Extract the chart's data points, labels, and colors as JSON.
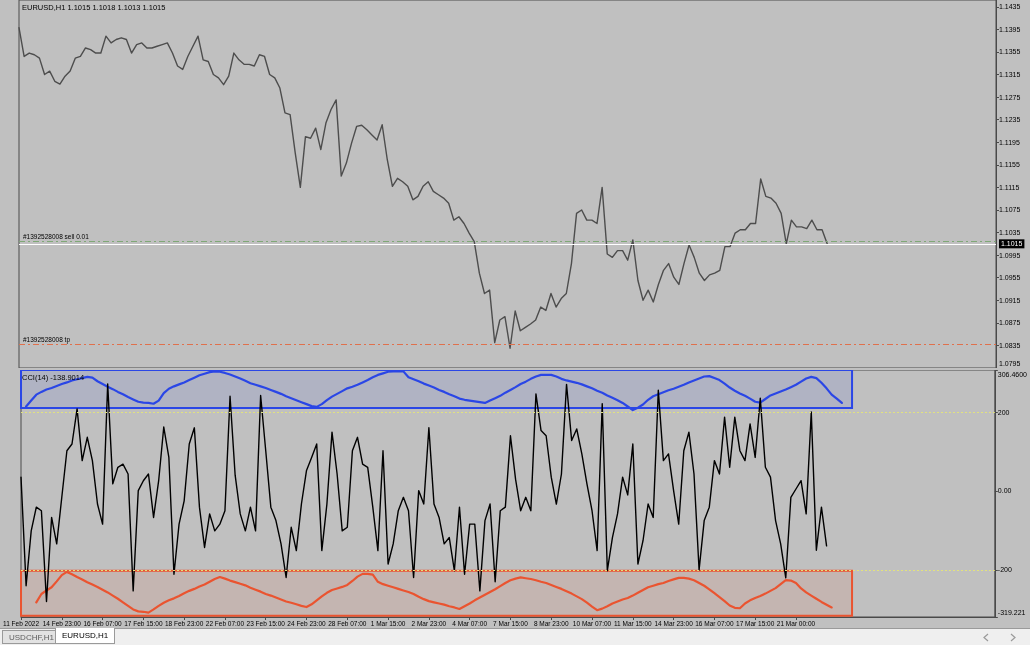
{
  "chart_data": [
    {
      "type": "line",
      "title": "EURUSD,H1 1.1015 1.1018 1.1013 1.1015",
      "categories": [
        null,
        null,
        null,
        null,
        null,
        null,
        null,
        null,
        null,
        null,
        null,
        null,
        null,
        null,
        null,
        null,
        null,
        null,
        null,
        null,
        null,
        null,
        null,
        null,
        null,
        null,
        null,
        null,
        null,
        null,
        null,
        null,
        null,
        null,
        null,
        null,
        null,
        null,
        null,
        null,
        null,
        null,
        null,
        null,
        null,
        null,
        null,
        null,
        null,
        null,
        null,
        null,
        null,
        null,
        null,
        null,
        null,
        null,
        null,
        null,
        null,
        null,
        null,
        null,
        null,
        null,
        null,
        null,
        null,
        null,
        null,
        null,
        null,
        null,
        null,
        null,
        null,
        null,
        null,
        null,
        null,
        null,
        null,
        null,
        null,
        null,
        null,
        null,
        null,
        null,
        null,
        null,
        null,
        null,
        null,
        null,
        null,
        null,
        null,
        null,
        null,
        null,
        null,
        null,
        null,
        null,
        null,
        null,
        null,
        null,
        null,
        null,
        null,
        null,
        null,
        null,
        null,
        null,
        null,
        null,
        null,
        null,
        null,
        null,
        null,
        null,
        null,
        null,
        null,
        null,
        null,
        null,
        null,
        null,
        null,
        null,
        null,
        null,
        null,
        null,
        null,
        null,
        null,
        null,
        null,
        null,
        null,
        null,
        null,
        null,
        null,
        null,
        null,
        null,
        null,
        null,
        null,
        null,
        null,
        null,
        null,
        null,
        null,
        null,
        null,
        null,
        null,
        null,
        null,
        null,
        null,
        null,
        null,
        null,
        null,
        null,
        null,
        null,
        null,
        null,
        null,
        null,
        null,
        null,
        null,
        null,
        null,
        null,
        null,
        null,
        null,
        null
      ],
      "series": [
        {
          "color": "#4d4d4d",
          "values": [
            1.1398,
            1.1347,
            1.1353,
            1.135,
            1.1344,
            1.1315,
            1.1321,
            1.1303,
            1.1298,
            1.1312,
            1.1321,
            1.1344,
            1.1347,
            1.1362,
            1.1359,
            1.1353,
            1.1353,
            1.1383,
            1.1371,
            1.1377,
            1.138,
            1.1377,
            1.1353,
            1.1368,
            1.1371,
            1.1362,
            1.1362,
            1.1365,
            1.1368,
            1.1371,
            1.1353,
            1.133,
            1.1324,
            1.1347,
            1.1365,
            1.1383,
            1.1341,
            1.1338,
            1.1315,
            1.1309,
            1.1297,
            1.1312,
            1.1353,
            1.1341,
            1.1333,
            1.1333,
            1.133,
            1.135,
            1.1347,
            1.1315,
            1.1309,
            1.1291,
            1.1247,
            1.1244,
            1.1176,
            1.1115,
            1.1205,
            1.1202,
            1.122,
            1.1182,
            1.1229,
            1.1253,
            1.127,
            1.1135,
            1.1158,
            1.1193,
            1.1223,
            1.1225,
            1.1217,
            1.1208,
            1.1199,
            1.1226,
            1.1164,
            1.1117,
            1.1131,
            1.1125,
            1.1117,
            1.1093,
            1.1099,
            1.1117,
            1.1125,
            1.1108,
            1.1102,
            1.1096,
            1.1087,
            1.1057,
            1.1063,
            1.1051,
            1.1034,
            1.1019,
            1.0963,
            1.0927,
            1.0933,
            1.084,
            1.088,
            1.0886,
            1.083,
            1.0896,
            1.0861,
            1.0867,
            1.0873,
            1.088,
            1.0903,
            1.0897,
            1.0927,
            1.0903,
            1.0918,
            1.0927,
            1.098,
            1.1069,
            1.1075,
            1.1057,
            1.1057,
            1.1051,
            1.1115,
            1.0997,
            1.0991,
            1.1003,
            1.1003,
            1.0986,
            1.1022,
            1.095,
            1.0915,
            1.0933,
            1.0912,
            1.0943,
            1.0968,
            1.098,
            1.0956,
            1.0943,
            1.098,
            1.1013,
            1.0991,
            1.0963,
            1.095,
            1.096,
            1.0963,
            1.0968,
            1.101,
            1.101,
            1.1034,
            1.104,
            1.104,
            1.1051,
            1.1051,
            1.113,
            1.1099,
            1.1096,
            1.1087,
            1.1069,
            1.1015,
            1.1057,
            1.1045,
            1.1045,
            1.1042,
            1.1057,
            1.104,
            1.104,
            1.1015,
            null,
            null,
            null,
            null,
            null,
            null,
            null,
            null,
            null,
            null,
            null,
            null,
            null,
            null,
            null,
            null,
            null,
            null,
            null,
            null,
            null,
            null,
            null,
            null,
            null,
            null,
            null,
            null,
            null,
            null,
            null,
            null,
            null
          ]
        }
      ],
      "ylim": [
        1.0795,
        1.1447
      ],
      "yticks": [
        1.1435,
        1.1395,
        1.1355,
        1.1315,
        1.1275,
        1.1235,
        1.1195,
        1.1155,
        1.1115,
        1.1075,
        1.1035,
        1.0995,
        1.0955,
        1.0915,
        1.0875,
        1.0835,
        1.0795
      ],
      "ref_lines": [
        {
          "axis": "y",
          "value": 1.102,
          "label": "#1392528008 sell 0.01",
          "color": "#7fa877",
          "line_style": "dashed"
        },
        {
          "axis": "y",
          "value": 1.1015,
          "label": "1.1015",
          "color": "#ffffff",
          "line_style": "solid"
        },
        {
          "axis": "y",
          "value": 1.0837,
          "label": "#1392528008 tp",
          "color": "#e0704c",
          "line_style": "dashed"
        }
      ],
      "tick_labels": "y",
      "grid": false,
      "marker": "none"
    },
    {
      "type": "line",
      "title": "CCI(14) -138.9014",
      "categories": [
        "11 Feb 2022",
        null,
        null,
        null,
        null,
        null,
        null,
        null,
        "14 Feb 23:00",
        null,
        null,
        null,
        null,
        null,
        null,
        null,
        "16 Feb 07:00",
        null,
        null,
        null,
        null,
        null,
        null,
        null,
        "17 Feb 15:00",
        null,
        null,
        null,
        null,
        null,
        null,
        null,
        "18 Feb 23:00",
        null,
        null,
        null,
        null,
        null,
        null,
        null,
        "22 Feb 07:00",
        null,
        null,
        null,
        null,
        null,
        null,
        null,
        "23 Feb 15:00",
        null,
        null,
        null,
        null,
        null,
        null,
        null,
        "24 Feb 23:00",
        null,
        null,
        null,
        null,
        null,
        null,
        null,
        "28 Feb 07:00",
        null,
        null,
        null,
        null,
        null,
        null,
        null,
        "1 Mar 15:00",
        null,
        null,
        null,
        null,
        null,
        null,
        null,
        "2 Mar 23:00",
        null,
        null,
        null,
        null,
        null,
        null,
        null,
        "4 Mar 07:00",
        null,
        null,
        null,
        null,
        null,
        null,
        null,
        "7 Mar 15:00",
        null,
        null,
        null,
        null,
        null,
        null,
        null,
        "8 Mar 23:00",
        null,
        null,
        null,
        null,
        null,
        null,
        null,
        "10 Mar 07:00",
        null,
        null,
        null,
        null,
        null,
        null,
        null,
        "11 Mar 15:00",
        null,
        null,
        null,
        null,
        null,
        null,
        null,
        "14 Mar 23:00",
        null,
        null,
        null,
        null,
        null,
        null,
        null,
        "16 Mar 07:00",
        null,
        null,
        null,
        null,
        null,
        null,
        null,
        "17 Mar 15:00",
        null,
        null,
        null,
        null,
        null,
        null,
        null,
        "21 Mar 00:00",
        null,
        null,
        null,
        null,
        null,
        null,
        null,
        null,
        null,
        null,
        null,
        null,
        null,
        null,
        null,
        null,
        null,
        null,
        null,
        null,
        null,
        null,
        null,
        null,
        null,
        null,
        null,
        null,
        null,
        null,
        null,
        null,
        null,
        null,
        null,
        null,
        null,
        null,
        null
      ],
      "series": [
        {
          "color": "#000000",
          "values": [
            35,
            -240,
            -101,
            -41,
            -50,
            -280,
            -67,
            -134,
            -16,
            102,
            119,
            208,
            77,
            136,
            77,
            -33,
            -84,
            271,
            18,
            60,
            68,
            43,
            -253,
            1,
            26,
            43,
            -67,
            26,
            162,
            85,
            -211,
            -84,
            -25,
            119,
            160,
            -41,
            -143,
            -58,
            -101,
            -84,
            -50,
            240,
            40,
            -58,
            -101,
            -41,
            -101,
            242,
            102,
            -41,
            -75,
            -134,
            -219,
            -92,
            -151,
            -33,
            52,
            85,
            119,
            -151,
            -33,
            149,
            43,
            -101,
            -92,
            102,
            136,
            68,
            60,
            -41,
            -151,
            102,
            -185,
            -134,
            -50,
            -16,
            -50,
            -219,
            1,
            -33,
            160,
            -33,
            -67,
            -134,
            -118,
            -202,
            -41,
            -211,
            -84,
            -84,
            -253,
            -75,
            -33,
            -230,
            -50,
            -41,
            140,
            30,
            -50,
            -16,
            -50,
            246,
            153,
            140,
            35,
            -33,
            43,
            270,
            128,
            157,
            94,
            18,
            -50,
            -151,
            221,
            -202,
            -118,
            -58,
            35,
            -10,
            119,
            -185,
            -126,
            -33,
            -67,
            255,
            77,
            94,
            1,
            -84,
            102,
            149,
            43,
            -200,
            -75,
            -41,
            77,
            43,
            187,
            60,
            187,
            102,
            77,
            170,
            85,
            235,
            60,
            35,
            -75,
            -134,
            -220,
            -16,
            5,
            26,
            -58,
            200,
            -150,
            -41,
            -139,
            null,
            null,
            null,
            null,
            null,
            null,
            null,
            null,
            null,
            null,
            null,
            null,
            null,
            null,
            null,
            null,
            null,
            null,
            null,
            null,
            null,
            null,
            null,
            null,
            null,
            null,
            null,
            null,
            null,
            null,
            null,
            null,
            null
          ]
        },
        {
          "color": "#2a46e6",
          "values": [
            null,
            214,
            229,
            244,
            251,
            257,
            261,
            266,
            271,
            275,
            280,
            283,
            286,
            289,
            287,
            278,
            271,
            264,
            258,
            251,
            245,
            238,
            232,
            226,
            224,
            223,
            221,
            229,
            248,
            259,
            265,
            270,
            275,
            281,
            287,
            293,
            297,
            301,
            303,
            302,
            299,
            295,
            290,
            285,
            279,
            273,
            269,
            265,
            261,
            256,
            251,
            246,
            240,
            235,
            230,
            225,
            220,
            215,
            213,
            220,
            230,
            239,
            246,
            253,
            260,
            264,
            269,
            275,
            281,
            288,
            294,
            298,
            302,
            303,
            303,
            303,
            288,
            283,
            278,
            272,
            267,
            262,
            256,
            251,
            245,
            240,
            234,
            231,
            229,
            227,
            225,
            223,
            229,
            235,
            241,
            249,
            256,
            263,
            271,
            277,
            284,
            290,
            294,
            294,
            294,
            290,
            284,
            280,
            277,
            274,
            270,
            265,
            260,
            254,
            249,
            242,
            236,
            230,
            223,
            214,
            205,
            211,
            219,
            231,
            240,
            245,
            250,
            255,
            259,
            264,
            269,
            275,
            280,
            285,
            290,
            291,
            286,
            281,
            272,
            262,
            254,
            247,
            241,
            234,
            226,
            224,
            233,
            242,
            247,
            252,
            257,
            263,
            269,
            277,
            285,
            289,
            286,
            274,
            260,
            244,
            234,
            223,
            null,
            null,
            null,
            null,
            null,
            null,
            null,
            null,
            null,
            null,
            null,
            null,
            null,
            null,
            null,
            null,
            null,
            null,
            null,
            null,
            null,
            null,
            null,
            null,
            null,
            null,
            null,
            null,
            null,
            null
          ]
        },
        {
          "color": "#ea5430",
          "values": [
            null,
            null,
            null,
            -282,
            -261,
            -252,
            -244,
            -229,
            -213,
            -205,
            -211,
            -218,
            -224,
            -231,
            -237,
            -243,
            -250,
            -257,
            -265,
            -273,
            -282,
            -291,
            -300,
            -305,
            -306,
            -308,
            -300,
            -291,
            -283,
            -277,
            -272,
            -266,
            -259,
            -253,
            -248,
            -242,
            -237,
            -230,
            -223,
            -218,
            -222,
            -227,
            -231,
            -235,
            -239,
            -245,
            -250,
            -255,
            -261,
            -265,
            -270,
            -275,
            -280,
            -283,
            -287,
            -291,
            -294,
            -287,
            -277,
            -267,
            -258,
            -251,
            -247,
            -243,
            -238,
            -228,
            -217,
            -210,
            -210,
            -212,
            -230,
            -236,
            -240,
            -244,
            -248,
            -252,
            -256,
            -261,
            -268,
            -274,
            -279,
            -282,
            -285,
            -288,
            -292,
            -295,
            -299,
            -292,
            -285,
            -277,
            -270,
            -263,
            -256,
            -249,
            -241,
            -233,
            -226,
            -222,
            -219,
            -221,
            -223,
            -226,
            -230,
            -233,
            -238,
            -243,
            -248,
            -254,
            -260,
            -267,
            -274,
            -283,
            -293,
            -302,
            -298,
            -292,
            -285,
            -280,
            -275,
            -271,
            -265,
            -258,
            -251,
            -244,
            -240,
            -236,
            -233,
            -228,
            -224,
            -220,
            -220,
            -222,
            -226,
            -233,
            -240,
            -249,
            -259,
            -269,
            -279,
            -290,
            -296,
            -297,
            -285,
            -277,
            -271,
            -266,
            -260,
            -253,
            -246,
            -236,
            -226,
            -227,
            -233,
            -247,
            -257,
            -265,
            -273,
            -281,
            -288,
            -295,
            null,
            null,
            null,
            null,
            null,
            null,
            null,
            null,
            null,
            null,
            null,
            null,
            null,
            null,
            null,
            null,
            null,
            null,
            null,
            null,
            null,
            null,
            null,
            null,
            null,
            null,
            null,
            null,
            null,
            null,
            null,
            null
          ]
        }
      ],
      "ylim": [
        -319.221,
        306.46
      ],
      "yticks": [
        {
          "value": 306.46,
          "label": "306.4600"
        },
        200,
        {
          "value": 0,
          "label": "0.00"
        },
        -200,
        -319.221
      ],
      "ref_lines": [
        {
          "axis": "y",
          "value": 200,
          "color": "#e2e27e",
          "line_style": "dotted"
        },
        {
          "axis": "y",
          "value": -200,
          "color": "#e2e27e",
          "line_style": "dotted"
        }
      ],
      "bands": [
        {
          "axis": "y",
          "from": 210,
          "to": 306.46,
          "color": "#2a46e6"
        },
        {
          "axis": "y",
          "from": -316,
          "to": -202,
          "color": "#ea5430"
        }
      ],
      "annotations": [
        "USDCHF,H1",
        "EURUSD,H1"
      ],
      "grid": false,
      "marker": "none"
    }
  ]
}
